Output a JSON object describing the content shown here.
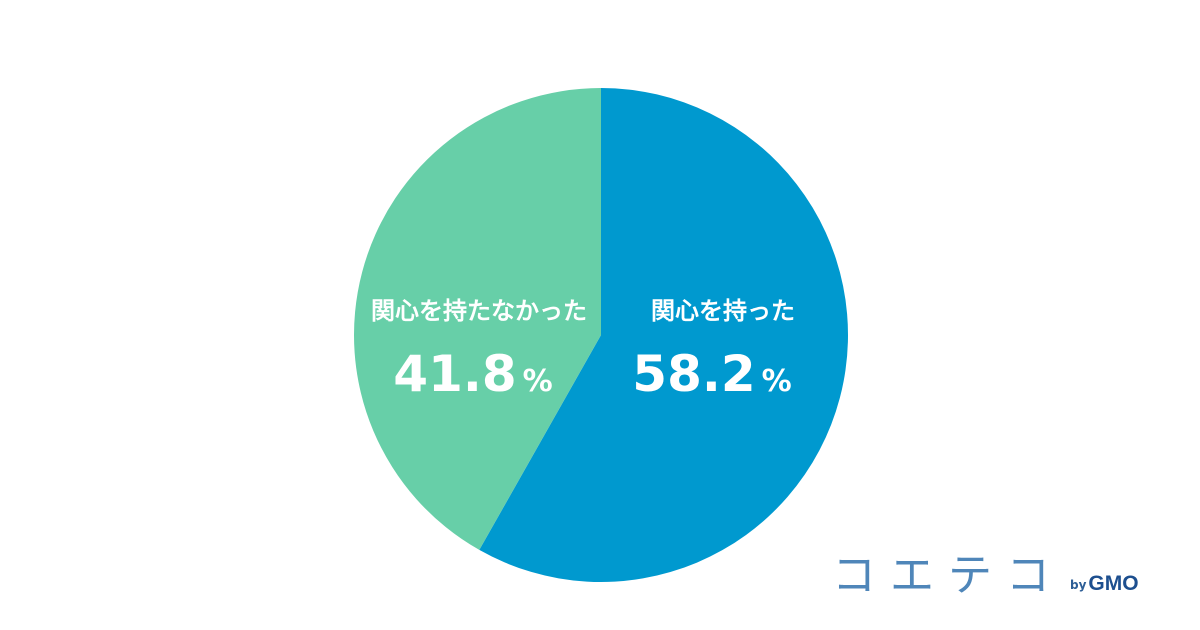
{
  "chart_data": {
    "type": "pie",
    "slices": [
      {
        "label": "関心を持った",
        "value": 58.2,
        "value_text": "58.2",
        "unit": "%",
        "color": "#0099cf"
      },
      {
        "label": "関心を持たなかった",
        "value": 41.8,
        "value_text": "41.8",
        "unit": "%",
        "color": "#67cfa8"
      }
    ],
    "start_angle_deg": 0,
    "direction": "clockwise"
  },
  "logo": {
    "main": "コエテコ",
    "by": "by",
    "brand": "GMO"
  }
}
